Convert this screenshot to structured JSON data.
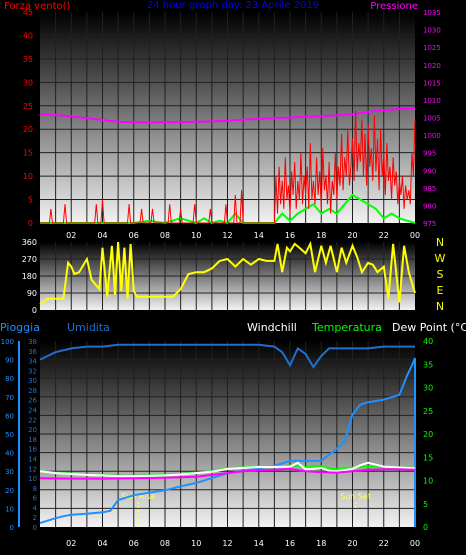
{
  "colors": {
    "wind": "#ff0000",
    "gust": "#ff0000",
    "wind_avg": "#00ff00",
    "pressure": "#ff00ff",
    "title": "#0000ff",
    "direction": "#ffff00",
    "rain_cum": "#1e90ff",
    "humidity": "#1f6fcf",
    "windchill": "#ffffff",
    "temperature": "#00ff00",
    "dewpoint": "#ff00ff",
    "label_white": "#ffffff",
    "sun_marker": "#ffff66",
    "grid": "#202020"
  },
  "chart_data": [
    {
      "type": "line",
      "title": "24 hour graph day: 23 Aprile 2019",
      "left_label": "Forza vento()",
      "right_label": "Pressione",
      "ylim": [
        0,
        45
      ],
      "y_ticks": [
        0,
        5,
        10,
        15,
        20,
        25,
        30,
        35,
        40,
        45
      ],
      "y2lim": [
        975,
        1035
      ],
      "y2_ticks": [
        975,
        980,
        985,
        990,
        995,
        1000,
        1005,
        1010,
        1015,
        1020,
        1025,
        1030,
        1035
      ],
      "x_ticks": [
        "02",
        "04",
        "06",
        "08",
        "10",
        "12",
        "14",
        "16",
        "18",
        "20",
        "22",
        "00"
      ],
      "grid": true,
      "series": [
        {
          "key": "pressure",
          "axis": "right",
          "x": [
            0,
            1,
            2,
            3,
            4,
            5,
            6,
            7,
            8,
            9,
            10,
            11,
            12,
            13,
            14,
            15,
            16,
            17,
            18,
            19,
            20,
            21,
            22,
            23,
            24
          ],
          "y": [
            1006.0,
            1005.7,
            1005.3,
            1004.8,
            1004.3,
            1003.8,
            1003.6,
            1003.6,
            1003.7,
            1003.7,
            1003.8,
            1003.9,
            1004.1,
            1004.4,
            1004.6,
            1004.8,
            1005.0,
            1005.2,
            1005.4,
            1005.6,
            1005.9,
            1006.6,
            1007.1,
            1007.4,
            1007.8
          ]
        },
        {
          "key": "wind_avg",
          "axis": "left",
          "x": [
            0,
            6,
            7,
            8,
            9,
            10,
            10.5,
            11,
            11.5,
            12,
            12.5,
            13,
            14,
            15,
            15.5,
            16,
            16.5,
            17,
            17.5,
            18,
            18.5,
            19,
            19.5,
            20,
            20.5,
            21,
            21.5,
            22,
            22.5,
            23,
            23.5,
            24
          ],
          "y": [
            0,
            0,
            0.5,
            0,
            1,
            0,
            1,
            0,
            0.5,
            0,
            2,
            0,
            0,
            0,
            2,
            0.5,
            2,
            3,
            4,
            2,
            3,
            2,
            4,
            6,
            5,
            4,
            3,
            1,
            2,
            1,
            0.5,
            0
          ]
        },
        {
          "key": "wind",
          "axis": "left",
          "x": [
            0,
            0.6,
            0.7,
            0.8,
            1.5,
            1.6,
            1.7,
            3.5,
            3.6,
            3.7,
            3.9,
            4.0,
            4.1,
            5.6,
            5.7,
            5.8,
            6.4,
            6.5,
            6.6,
            7.1,
            7.2,
            7.3,
            8.2,
            8.3,
            8.4,
            8.9,
            9.0,
            9.1,
            9.8,
            9.9,
            10.0,
            10.8,
            10.9,
            11.0,
            11.8,
            11.9,
            12.0,
            12.4,
            12.5,
            12.6,
            12.8,
            12.9,
            13.0,
            15.0,
            15.1,
            15.2,
            15.3,
            15.4,
            15.5,
            15.6,
            15.7,
            15.8,
            15.9,
            16.0,
            16.1,
            16.2,
            16.3,
            16.4,
            16.5,
            16.6,
            16.7,
            16.8,
            16.9,
            17.0,
            17.1,
            17.2,
            17.3,
            17.4,
            17.5,
            17.6,
            17.7,
            17.8,
            17.9,
            18.0,
            18.1,
            18.2,
            18.3,
            18.4,
            18.5,
            18.6,
            18.7,
            18.8,
            18.9,
            19.0,
            19.1,
            19.2,
            19.3,
            19.4,
            19.5,
            19.6,
            19.7,
            19.8,
            19.9,
            20.0,
            20.1,
            20.2,
            20.3,
            20.4,
            20.5,
            20.6,
            20.7,
            20.8,
            20.9,
            21.0,
            21.1,
            21.2,
            21.3,
            21.4,
            21.5,
            21.6,
            21.7,
            21.8,
            21.9,
            22.0,
            22.1,
            22.2,
            22.3,
            22.4,
            22.5,
            22.6,
            22.7,
            22.8,
            22.9,
            23.0,
            23.1,
            23.2,
            23.3,
            23.4,
            23.5,
            23.6,
            23.7,
            23.8,
            23.9,
            24.0
          ],
          "y": [
            0,
            0,
            3,
            0,
            0,
            4,
            0,
            0,
            4,
            0,
            0,
            5,
            0,
            0,
            4,
            0,
            0,
            3,
            0,
            0,
            3,
            0,
            0,
            4,
            0,
            0,
            3,
            0,
            0,
            4,
            0,
            0,
            3,
            0,
            0,
            4,
            0,
            0,
            6,
            0,
            0,
            7,
            0,
            0,
            10,
            2,
            12,
            4,
            9,
            3,
            14,
            5,
            8,
            2,
            11,
            6,
            13,
            3,
            9,
            5,
            15,
            4,
            10,
            6,
            12,
            3,
            17,
            5,
            9,
            4,
            14,
            6,
            11,
            3,
            16,
            7,
            10,
            4,
            13,
            2,
            9,
            6,
            15,
            5,
            12,
            8,
            19,
            7,
            14,
            10,
            20,
            8,
            12,
            18,
            9,
            24,
            11,
            17,
            13,
            22,
            10,
            19,
            8,
            21,
            12,
            16,
            9,
            23,
            11,
            18,
            7,
            20,
            10,
            15,
            6,
            17,
            9,
            12,
            5,
            14,
            8,
            11,
            4,
            9,
            6,
            10,
            3,
            8,
            5,
            7,
            4,
            15,
            10,
            22
          ]
        }
      ]
    },
    {
      "type": "line",
      "ylim": [
        0,
        360
      ],
      "y_ticks": [
        0,
        90,
        180,
        270,
        360
      ],
      "compass_labels": [
        "N",
        "W",
        "S",
        "E",
        "N"
      ],
      "grid": true,
      "series": [
        {
          "key": "direction",
          "x": [
            0,
            0.5,
            1,
            1.5,
            1.8,
            2.0,
            2.2,
            2.5,
            3.0,
            3.3,
            3.8,
            4.0,
            4.3,
            4.6,
            4.8,
            5.0,
            5.2,
            5.4,
            5.6,
            5.8,
            6.0,
            6.2,
            6.5,
            7.0,
            7.5,
            8.0,
            8.5,
            9.0,
            9.5,
            10.0,
            10.5,
            11.0,
            11.5,
            12.0,
            12.5,
            13.0,
            13.5,
            14.0,
            14.5,
            15.0,
            15.2,
            15.5,
            15.8,
            16.0,
            16.3,
            16.6,
            17.0,
            17.3,
            17.6,
            18.0,
            18.3,
            18.6,
            19.0,
            19.3,
            19.6,
            20.0,
            20.3,
            20.6,
            21.0,
            21.3,
            21.6,
            22.0,
            22.3,
            22.6,
            23.0,
            23.3,
            23.6,
            24.0
          ],
          "y": [
            30,
            60,
            60,
            60,
            250,
            230,
            190,
            200,
            270,
            160,
            110,
            330,
            70,
            340,
            80,
            360,
            100,
            330,
            60,
            350,
            100,
            70,
            70,
            70,
            70,
            70,
            70,
            110,
            190,
            200,
            200,
            220,
            260,
            270,
            230,
            270,
            240,
            270,
            260,
            260,
            350,
            200,
            330,
            310,
            350,
            330,
            300,
            350,
            200,
            340,
            250,
            340,
            200,
            330,
            250,
            340,
            280,
            200,
            250,
            240,
            200,
            230,
            60,
            350,
            40,
            340,
            200,
            90
          ]
        }
      ]
    },
    {
      "type": "line",
      "left_label_1": "Pioggia",
      "left_label_2": "Umidita",
      "windchill_label": "Windchill",
      "temperature_label": "Temperatura",
      "dewpoint_label": "Dew Point (°C)",
      "sun_rise": "Sun Rise",
      "sun_set": "Sun Set",
      "sun_rise_x": 6.3,
      "sun_set_x": 20.2,
      "y_rain_lim": [
        0,
        100
      ],
      "y_rain_ticks": [
        0,
        10,
        20,
        30,
        40,
        50,
        60,
        70,
        80,
        90,
        100
      ],
      "y_hum_lim": [
        0,
        38
      ],
      "y_hum_ticks": [
        0,
        2,
        4,
        6,
        8,
        10,
        12,
        14,
        16,
        18,
        20,
        22,
        24,
        26,
        28,
        30,
        32,
        34,
        36,
        38
      ],
      "y_temp_lim": [
        0,
        40
      ],
      "y_temp_ticks": [
        0,
        5,
        10,
        15,
        20,
        25,
        30,
        35,
        40
      ],
      "x_ticks": [
        "02",
        "04",
        "06",
        "08",
        "10",
        "12",
        "14",
        "16",
        "18",
        "20",
        "22",
        "00"
      ],
      "grid": true,
      "series": [
        {
          "key": "humidity",
          "axis": "rain",
          "x": [
            0,
            1,
            2,
            3,
            4,
            5,
            6,
            7,
            8,
            9,
            10,
            11,
            12,
            13,
            14,
            15,
            15.5,
            16,
            16.5,
            17,
            17.5,
            18,
            18.5,
            19,
            20,
            21,
            22,
            23,
            24
          ],
          "y": [
            90,
            94,
            96,
            97,
            97,
            98,
            98,
            98,
            98,
            98,
            98,
            98,
            98,
            98,
            98,
            97,
            94,
            87,
            96,
            93,
            86,
            92,
            96,
            96,
            96,
            96,
            97,
            97,
            97
          ]
        },
        {
          "key": "rain_cum",
          "axis": "hum",
          "x": [
            0,
            0.5,
            1,
            1.5,
            2,
            3,
            4,
            4.5,
            5,
            6,
            7,
            8,
            9,
            10,
            11,
            12,
            13,
            14,
            15,
            16,
            17,
            18,
            19,
            19.5,
            20,
            20.5,
            21,
            22,
            23,
            23.5,
            23.8,
            24,
            24
          ],
          "y": [
            0.8,
            1.3,
            1.8,
            2.2,
            2.5,
            2.7,
            3,
            3.3,
            5.5,
            6.5,
            7,
            7.5,
            8.3,
            9,
            10,
            11,
            11.5,
            12,
            12.5,
            13.5,
            13.5,
            13.5,
            16,
            17.5,
            23,
            25,
            25.5,
            26,
            27,
            31,
            33,
            34.5,
            0
          ]
        },
        {
          "key": "temperature",
          "axis": "temp",
          "x": [
            0,
            1,
            2,
            3,
            4,
            5,
            6,
            7,
            8,
            9,
            10,
            11,
            12,
            13,
            14,
            15,
            16,
            16.5,
            17,
            17.5,
            18,
            18.5,
            19,
            20,
            21,
            22,
            23,
            24
          ],
          "y": [
            12,
            11.7,
            11.5,
            11.3,
            11.2,
            11.0,
            11.0,
            11.1,
            11.2,
            11.4,
            11.7,
            12.0,
            12.6,
            12.8,
            13.0,
            13.0,
            13.2,
            13.2,
            12.8,
            13.2,
            13.0,
            12.6,
            12.4,
            12.8,
            13.0,
            12.9,
            12.8,
            12.7
          ]
        },
        {
          "key": "windchill",
          "axis": "temp",
          "x": [
            0,
            1,
            2,
            3,
            4,
            5,
            6,
            7,
            8,
            9,
            10,
            11,
            12,
            13,
            14,
            15,
            16,
            16.5,
            17,
            17.5,
            18,
            18.5,
            19,
            20,
            20.5,
            21,
            22,
            23,
            24
          ],
          "y": [
            12.0,
            11.6,
            11.4,
            11.2,
            11.1,
            10.9,
            10.9,
            11.0,
            11.1,
            11.3,
            11.6,
            11.9,
            12.5,
            12.7,
            12.9,
            12.9,
            13.0,
            13.8,
            12.4,
            12.5,
            12.7,
            12.1,
            12.0,
            12.5,
            13.3,
            13.8,
            13.0,
            12.8,
            12.6
          ]
        },
        {
          "key": "dewpoint",
          "axis": "temp",
          "x": [
            0,
            2,
            4,
            6,
            8,
            10,
            11,
            12,
            13,
            14,
            15,
            16,
            17,
            18,
            19,
            20,
            21,
            22,
            23,
            24
          ],
          "y": [
            10.5,
            10.4,
            10.4,
            10.5,
            10.6,
            10.8,
            11.2,
            11.6,
            12.0,
            12.2,
            12.3,
            12.5,
            12.0,
            11.8,
            11.7,
            12.0,
            12.3,
            12.4,
            12.4,
            12.3
          ]
        }
      ]
    }
  ]
}
